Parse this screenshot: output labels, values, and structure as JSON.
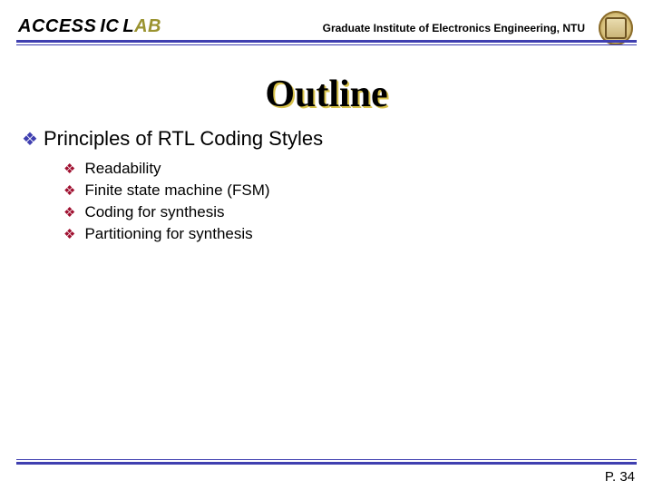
{
  "colors": {
    "rule": "#3f3fb0",
    "title_shadow": "#d8c24a",
    "bullet_l1": "#3f3fb0",
    "bullet_l2": "#a01030",
    "lab_ab": "#9a9330",
    "background": "#ffffff",
    "text": "#000000"
  },
  "fonts": {
    "title_family": "Times New Roman",
    "title_size_pt": 32,
    "title_weight": "bold",
    "body_family": "Arial",
    "l1_size_pt": 17,
    "l2_size_pt": 13,
    "header_inst_size_pt": 9,
    "lab_size_pt": 15
  },
  "header": {
    "lab_access": "ACCESS",
    "lab_ic": "IC",
    "lab_l": "L",
    "lab_ab": "AB",
    "institute": "Graduate Institute of Electronics Engineering, NTU",
    "logo_alt": "ntu-seal"
  },
  "title": "Outline",
  "bullet_glyph": "❖",
  "items": {
    "l1": "Principles of RTL Coding Styles",
    "l2": {
      "0": "Readability",
      "1": "Finite state machine (FSM)",
      "2": "Coding for synthesis",
      "3": "Partitioning for synthesis"
    }
  },
  "footer": {
    "page_prefix": "P",
    "page_number": ". 34",
    "page_label": "P. 34"
  }
}
